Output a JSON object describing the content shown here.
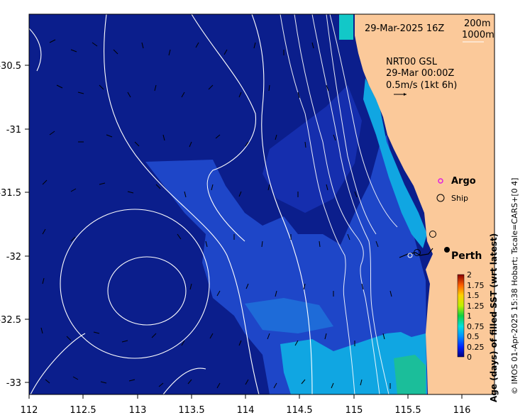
{
  "map": {
    "date_label": "29-Mar-2025 16Z",
    "contour_legend": [
      "200m",
      "1000m"
    ],
    "current_title": "NRT00 GSL",
    "current_time": "29-Mar 00:00Z",
    "current_scale": "0.5m/s (1kt 6h)",
    "legend_argo": "Argo",
    "legend_ship": "Ship",
    "city": "Perth",
    "land_color": "#FBC99A",
    "ocean_color": "#0B1E8C"
  },
  "axes": {
    "x_ticks": [
      "112",
      "112.5",
      "113",
      "113.5",
      "114",
      "114.5",
      "115",
      "115.5",
      "116"
    ],
    "y_ticks": [
      "-30.5",
      "-31",
      "-31.5",
      "-32",
      "-32.5",
      "-33"
    ]
  },
  "colorbar": {
    "title": "Age (days) of filled SST (wrt latest)",
    "ticks": [
      "2",
      "1.75",
      "1.5",
      "1.25",
      "1",
      "0.75",
      "0.5",
      "0.25",
      "0"
    ]
  },
  "credit": "© IMOS 01-Apr-2025 15:38 Hobart; Tscale=CARS+[0 4]"
}
